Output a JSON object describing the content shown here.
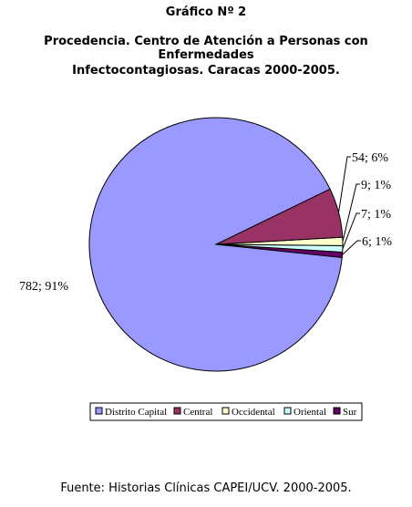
{
  "chart_title": {
    "line1": "Gráfico Nº 2",
    "line2": "Procedencia. Centro de Atención a Personas con Enfermedades",
    "line3": "Infectocontagiosas. Caracas 2000-2005."
  },
  "chart_data": {
    "type": "pie",
    "categories": [
      "Distrito Capital",
      "Central",
      "Occidental",
      "Oriental",
      "Sur"
    ],
    "values": [
      782,
      54,
      9,
      7,
      6
    ],
    "percent_labels": [
      "91%",
      "6%",
      "1%",
      "1%",
      "1%"
    ],
    "data_labels": [
      "782; 91%",
      "54; 6%",
      "9; 1%",
      "7; 1%",
      "6; 1%"
    ],
    "colors": [
      "#9999ff",
      "#993366",
      "#ffffcc",
      "#ccffff",
      "#660066"
    ],
    "legend_position": "bottom"
  },
  "footer": "Fuente: Historias Clínicas CAPEI/UCV. 2000-2005."
}
